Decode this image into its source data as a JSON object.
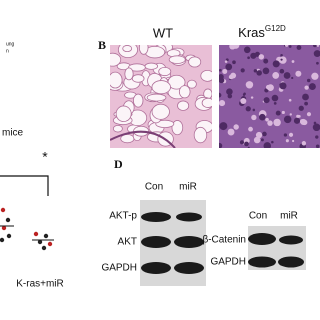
{
  "panel_left": {
    "fragments": [
      "ung",
      "n"
    ],
    "title_fragment": "mice",
    "significance": "*",
    "x_label": "K-ras+miR"
  },
  "panel_b": {
    "label": "B",
    "images": [
      {
        "label": "WT"
      },
      {
        "label": "Kras",
        "superscript": "G12D"
      }
    ]
  },
  "panel_d": {
    "label": "D",
    "blot_1": {
      "columns": [
        "Con",
        "miR"
      ],
      "rows": [
        "AKT-p",
        "AKT",
        "GAPDH"
      ]
    },
    "blot_2": {
      "columns": [
        "Con",
        "miR"
      ],
      "rows": [
        "β-Catenin",
        "GAPDH"
      ]
    }
  }
}
